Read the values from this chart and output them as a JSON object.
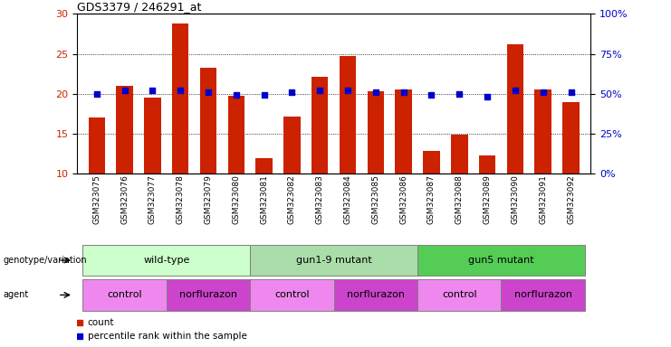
{
  "title": "GDS3379 / 246291_at",
  "samples": [
    "GSM323075",
    "GSM323076",
    "GSM323077",
    "GSM323078",
    "GSM323079",
    "GSM323080",
    "GSM323081",
    "GSM323082",
    "GSM323083",
    "GSM323084",
    "GSM323085",
    "GSM323086",
    "GSM323087",
    "GSM323088",
    "GSM323089",
    "GSM323090",
    "GSM323091",
    "GSM323092"
  ],
  "counts": [
    17.0,
    21.0,
    19.5,
    28.8,
    23.2,
    19.7,
    11.9,
    17.1,
    22.1,
    24.7,
    20.3,
    20.5,
    12.8,
    14.9,
    12.3,
    26.2,
    20.5,
    19.0
  ],
  "percentiles": [
    50,
    52,
    52,
    52,
    51,
    49,
    49,
    51,
    52,
    52,
    51,
    51,
    49,
    50,
    48,
    52,
    51,
    51
  ],
  "ylim_left": [
    10,
    30
  ],
  "ylim_right": [
    0,
    100
  ],
  "yticks_left": [
    10,
    15,
    20,
    25,
    30
  ],
  "yticks_right": [
    0,
    25,
    50,
    75,
    100
  ],
  "bar_color": "#cc2200",
  "dot_color": "#0000cc",
  "genotype_groups": [
    {
      "label": "wild-type",
      "start": 0,
      "end": 5,
      "color": "#ccffcc"
    },
    {
      "label": "gun1-9 mutant",
      "start": 6,
      "end": 11,
      "color": "#aaddaa"
    },
    {
      "label": "gun5 mutant",
      "start": 12,
      "end": 17,
      "color": "#55cc55"
    }
  ],
  "agent_groups": [
    {
      "label": "control",
      "start": 0,
      "end": 2,
      "color": "#ee88ee"
    },
    {
      "label": "norflurazon",
      "start": 3,
      "end": 5,
      "color": "#cc44cc"
    },
    {
      "label": "control",
      "start": 6,
      "end": 8,
      "color": "#ee88ee"
    },
    {
      "label": "norflurazon",
      "start": 9,
      "end": 11,
      "color": "#cc44cc"
    },
    {
      "label": "control",
      "start": 12,
      "end": 14,
      "color": "#ee88ee"
    },
    {
      "label": "norflurazon",
      "start": 15,
      "end": 17,
      "color": "#cc44cc"
    }
  ],
  "legend_count_color": "#cc2200",
  "legend_dot_color": "#0000cc"
}
